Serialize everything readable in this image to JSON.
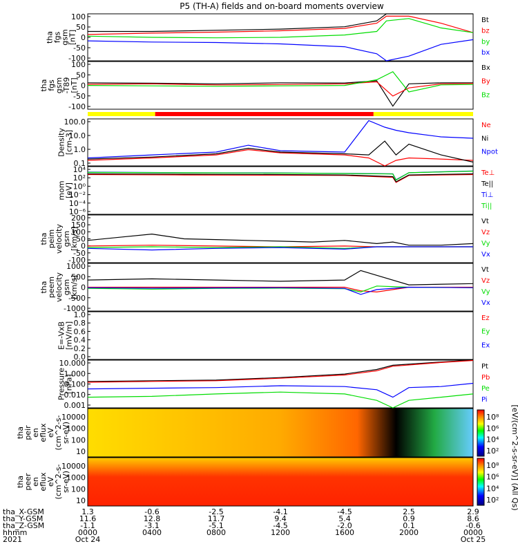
{
  "title": "P5 (TH-A) fields and on-board moments overview",
  "colors": {
    "black": "#000000",
    "red": "#ff0000",
    "green": "#00dd00",
    "blue": "#0000ff",
    "yellow": "#ffff00"
  },
  "chart_data": {
    "type": "line",
    "x_axis": {
      "tick_labels": [
        "0000",
        "0400",
        "0800",
        "1200",
        "1600",
        "2000",
        "0000"
      ],
      "tick_dates": [
        "Oct 24",
        "",
        "",
        "",
        "",
        "",
        "Oct 25"
      ],
      "year": "2021",
      "hours": [
        0,
        4,
        8,
        12,
        16,
        20,
        24
      ]
    },
    "ephemeris": {
      "rows": [
        {
          "label": "tha_X-GSM",
          "values": [
            "1.3",
            "-0.6",
            "-2.5",
            "-4.1",
            "-4.5",
            "2.5",
            "2.9"
          ]
        },
        {
          "label": "tha_Y-GSM",
          "values": [
            "11.6",
            "12.8",
            "11.7",
            "9.4",
            "5.4",
            "0.9",
            "8.6"
          ]
        },
        {
          "label": "tha_Z-GSM",
          "values": [
            "-1.1",
            "-3.1",
            "-5.1",
            "-4.5",
            "-2.0",
            "0.1",
            "-0.6"
          ]
        },
        {
          "label": "hhmm",
          "values": [
            "0000",
            "0400",
            "0800",
            "1200",
            "1600",
            "2000",
            "0000"
          ]
        },
        {
          "label": "2021",
          "values": [
            "Oct 24",
            "",
            "",
            "",
            "",
            "",
            "Oct 25"
          ]
        }
      ]
    },
    "panels": [
      {
        "ylabel": [
          "tha",
          "fgs",
          "gsm",
          "[nT]"
        ],
        "ylim": [
          -100,
          100
        ],
        "yticks": [
          "100",
          "50",
          "0",
          "-50",
          "-100"
        ],
        "series": [
          {
            "name": "Bt",
            "color": "#000000",
            "hours": [
              0,
              4,
              8,
              12,
              16,
              18,
              18.6,
              20,
              22,
              24
            ],
            "values": [
              25,
              25,
              30,
              35,
              45,
              70,
              100,
              100,
              100,
              100
            ]
          },
          {
            "name": "bz",
            "color": "#ff0000",
            "hours": [
              0,
              4,
              8,
              12,
              16,
              18,
              18.6,
              20,
              22,
              24
            ],
            "values": [
              12,
              18,
              22,
              28,
              38,
              60,
              90,
              90,
              60,
              20
            ]
          },
          {
            "name": "by",
            "color": "#00dd00",
            "hours": [
              0,
              4,
              8,
              12,
              16,
              18,
              18.6,
              20,
              22,
              24
            ],
            "values": [
              5,
              0,
              -2,
              0,
              10,
              25,
              70,
              80,
              40,
              20
            ]
          },
          {
            "name": "bx",
            "color": "#0000ff",
            "hours": [
              0,
              4,
              8,
              12,
              16,
              18,
              18.6,
              20,
              22,
              24
            ],
            "values": [
              -15,
              -20,
              -22,
              -28,
              -40,
              -70,
              -100,
              -80,
              -30,
              -10
            ]
          }
        ]
      },
      {
        "ylabel": [
          "tha",
          "fgs",
          "gsm",
          "-T89",
          "[nT]"
        ],
        "ylim": [
          -125,
          110
        ],
        "yticks": [
          "100",
          "50",
          "0",
          "-50",
          "-100"
        ],
        "series": [
          {
            "name": "Bx",
            "color": "#000000",
            "hours": [
              0,
              4,
              8,
              12,
              16,
              18,
              19,
              20,
              22,
              24
            ],
            "values": [
              5,
              3,
              0,
              5,
              4,
              15,
              -110,
              0,
              5,
              5
            ]
          },
          {
            "name": "By",
            "color": "#ff0000",
            "hours": [
              0,
              4,
              8,
              12,
              16,
              18,
              19,
              20,
              22,
              24
            ],
            "values": [
              -2,
              0,
              -5,
              -3,
              0,
              10,
              -60,
              -20,
              0,
              2
            ]
          },
          {
            "name": "Bz",
            "color": "#00dd00",
            "hours": [
              0,
              4,
              8,
              12,
              16,
              18,
              19,
              20,
              22,
              24
            ],
            "values": [
              -8,
              -10,
              -12,
              -10,
              -8,
              20,
              60,
              -40,
              -5,
              -3
            ]
          }
        ]
      },
      {
        "ylabel": [
          "Density",
          "[cm-3]"
        ],
        "log": true,
        "ylim": [
          0.08,
          200
        ],
        "yticks": [
          "100.0",
          "10.0",
          "1.0",
          "0.1"
        ],
        "series": [
          {
            "name": "Ne",
            "color": "#ff0000",
            "hours": [
              0,
              4,
              8,
              10,
              12,
              16,
              17.5,
              18.5,
              19.2,
              20,
              22,
              24
            ],
            "values": [
              0.2,
              0.3,
              0.5,
              1.2,
              0.7,
              0.5,
              0.3,
              0.08,
              0.2,
              0.3,
              0.25,
              0.2
            ]
          },
          {
            "name": "Ni",
            "color": "#000000",
            "hours": [
              0,
              4,
              8,
              10,
              12,
              16,
              17.5,
              18.5,
              19.2,
              20,
              22,
              24
            ],
            "values": [
              0.25,
              0.35,
              0.6,
              1.5,
              0.8,
              0.6,
              0.5,
              5,
              0.5,
              3,
              0.5,
              0.15
            ]
          },
          {
            "name": "Npot",
            "color": "#0000ff",
            "hours": [
              0,
              4,
              8,
              10,
              12,
              16,
              17.5,
              18.5,
              19.2,
              20,
              22,
              24
            ],
            "values": [
              0.3,
              0.5,
              0.8,
              2.5,
              1.0,
              0.8,
              150,
              50,
              30,
              20,
              10,
              8
            ]
          }
        ]
      },
      {
        "ylabel": [
          "mom",
          "[eV]"
        ],
        "log": true,
        "ylim": [
          1e-07,
          100000.0
        ],
        "yticks": [
          "10^4",
          "10^2",
          "10^0",
          "10^-2",
          "10^-4",
          "10^-6"
        ],
        "series": [
          {
            "name": "Te⊥",
            "color": "#ff0000",
            "hours": [
              0,
              6,
              12,
              16,
              19,
              19.2,
              20,
              24
            ],
            "values": [
              1000,
              800,
              700,
              600,
              200,
              10,
              600,
              1000
            ]
          },
          {
            "name": "Te||",
            "color": "#000000",
            "hours": [
              0,
              6,
              12,
              16,
              19,
              19.2,
              20,
              24
            ],
            "values": [
              1500,
              1200,
              1000,
              800,
              300,
              15,
              800,
              1500
            ]
          },
          {
            "name": "Ti⊥",
            "color": "#0000ff",
            "hours": [
              0,
              6,
              12,
              16,
              19,
              19.2,
              20,
              24
            ],
            "values": [
              4000,
              3000,
              2500,
              2000,
              1500,
              50,
              3000,
              8000
            ]
          },
          {
            "name": "Ti||",
            "color": "#00dd00",
            "hours": [
              0,
              6,
              12,
              16,
              19,
              19.2,
              20,
              24
            ],
            "values": [
              3500,
              2800,
              2300,
              1800,
              1400,
              40,
              2800,
              7000
            ]
          }
        ]
      },
      {
        "ylabel": [
          "tha",
          "peim",
          "velocity",
          "gsm",
          "[km/s]"
        ],
        "ylim": [
          -100,
          200
        ],
        "yticks": [
          "200",
          "150",
          "100",
          "50",
          "0",
          "-50",
          "-100"
        ],
        "series": [
          {
            "name": "Vt",
            "color": "#000000",
            "hours": [
              0,
              2,
              4,
              6,
              8,
              10,
              12,
              14,
              16,
              18,
              19,
              20,
              22,
              24
            ],
            "values": [
              40,
              60,
              80,
              50,
              45,
              40,
              35,
              30,
              40,
              20,
              30,
              10,
              10,
              20
            ]
          },
          {
            "name": "Vz",
            "color": "#ff0000",
            "hours": [
              0,
              4,
              8,
              12,
              16,
              18,
              20,
              24
            ],
            "values": [
              5,
              10,
              5,
              0,
              5,
              0,
              0,
              0
            ]
          },
          {
            "name": "Vy",
            "color": "#00dd00",
            "hours": [
              0,
              4,
              8,
              12,
              16,
              18,
              20,
              24
            ],
            "values": [
              -5,
              0,
              -5,
              0,
              -10,
              0,
              0,
              0
            ]
          },
          {
            "name": "Vx",
            "color": "#0000ff",
            "hours": [
              0,
              4,
              8,
              12,
              16,
              18,
              20,
              24
            ],
            "values": [
              -10,
              -20,
              -10,
              -5,
              -15,
              0,
              0,
              0
            ]
          }
        ]
      },
      {
        "ylabel": [
          "tha",
          "peem",
          "velocity",
          "gsm",
          "[km/s]"
        ],
        "ylim": [
          -1000,
          1000
        ],
        "yticks": [
          "1000",
          "500",
          "0",
          "-500",
          "-1000"
        ],
        "series": [
          {
            "name": "Vt",
            "color": "#000000",
            "hours": [
              0,
              4,
              8,
              12,
              16,
              17,
              18,
              20,
              24
            ],
            "values": [
              300,
              350,
              300,
              250,
              300,
              700,
              500,
              100,
              150
            ]
          },
          {
            "name": "Vz",
            "color": "#ff0000",
            "hours": [
              0,
              4,
              8,
              12,
              16,
              17,
              18,
              20,
              24
            ],
            "values": [
              0,
              0,
              0,
              0,
              0,
              -150,
              -200,
              0,
              0
            ]
          },
          {
            "name": "Vy",
            "color": "#00dd00",
            "hours": [
              0,
              4,
              8,
              12,
              16,
              17,
              18,
              20,
              24
            ],
            "values": [
              -50,
              -80,
              -50,
              -40,
              -60,
              -200,
              50,
              0,
              -20
            ]
          },
          {
            "name": "Vx",
            "color": "#0000ff",
            "hours": [
              0,
              4,
              8,
              12,
              16,
              17,
              18,
              20,
              24
            ],
            "values": [
              -20,
              -40,
              -30,
              -20,
              -50,
              -300,
              -100,
              0,
              -20
            ]
          }
        ]
      },
      {
        "ylabel": [
          "E=-VxB",
          "[mV/m]"
        ],
        "ylim": [
          0,
          1
        ],
        "yticks": [
          "1.0",
          "0.8",
          "0.6",
          "0.4",
          "0.2",
          "0.0"
        ],
        "series": [
          {
            "name": "Ez",
            "color": "#ff0000",
            "hours": [],
            "values": []
          },
          {
            "name": "Ey",
            "color": "#00dd00",
            "hours": [],
            "values": []
          },
          {
            "name": "Ex",
            "color": "#0000ff",
            "hours": [],
            "values": []
          }
        ]
      },
      {
        "ylabel": [
          "Pressure",
          "[nPa]"
        ],
        "log": true,
        "ylim": [
          0.001,
          30
        ],
        "yticks": [
          "10.000",
          "1.000",
          "0.100",
          "0.010",
          "0.001"
        ],
        "series": [
          {
            "name": "Pt",
            "color": "#000000",
            "hours": [
              0,
              4,
              8,
              12,
              16,
              18,
              19,
              22,
              24
            ],
            "values": [
              0.3,
              0.35,
              0.4,
              0.7,
              1.5,
              4,
              10,
              20,
              30
            ]
          },
          {
            "name": "Pb",
            "color": "#ff0000",
            "hours": [
              0,
              4,
              8,
              12,
              16,
              18,
              19,
              22,
              24
            ],
            "values": [
              0.25,
              0.3,
              0.35,
              0.6,
              1.2,
              3,
              8,
              18,
              28
            ]
          },
          {
            "name": "Pe",
            "color": "#00dd00",
            "hours": [
              0,
              4,
              8,
              12,
              16,
              18,
              19,
              20,
              22,
              24
            ],
            "values": [
              0.01,
              0.012,
              0.02,
              0.03,
              0.02,
              0.005,
              0.001,
              0.005,
              0.01,
              0.02
            ]
          },
          {
            "name": "Pi",
            "color": "#0000ff",
            "hours": [
              0,
              4,
              8,
              12,
              16,
              18,
              19,
              20,
              22,
              24
            ],
            "values": [
              0.06,
              0.07,
              0.08,
              0.12,
              0.1,
              0.05,
              0.01,
              0.08,
              0.1,
              0.2
            ]
          }
        ]
      }
    ],
    "spectrograms": [
      {
        "ylabel": [
          "tha",
          "peir",
          "en",
          "eflux",
          "eV",
          "(cm^2-s-",
          "sr-eV)"
        ],
        "yticks": [
          "10000",
          "1000",
          "100",
          "10"
        ]
      },
      {
        "ylabel": [
          "tha",
          "peer",
          "en",
          "eflux",
          "eV",
          "(cm^2-s-",
          "sr-eV)"
        ],
        "yticks": [
          "10000",
          "1000",
          "100",
          "10"
        ]
      }
    ],
    "colorbar": {
      "label": "[eV/(cm^2-s-sr-eV)] (All Qs)",
      "ticks_top": [
        "10^8",
        "10^6",
        "10^4",
        "10^2"
      ],
      "ticks_bottom": [
        "10^8",
        "10^6",
        "10^4",
        "10^2"
      ]
    },
    "status_bar": {
      "segments": [
        {
          "color": "#ffff00",
          "from_hour": 0,
          "to_hour": 4.2
        },
        {
          "color": "#ff0000",
          "from_hour": 4.2,
          "to_hour": 17.8
        },
        {
          "color": "#ffff00",
          "from_hour": 17.8,
          "to_hour": 24
        }
      ]
    }
  }
}
